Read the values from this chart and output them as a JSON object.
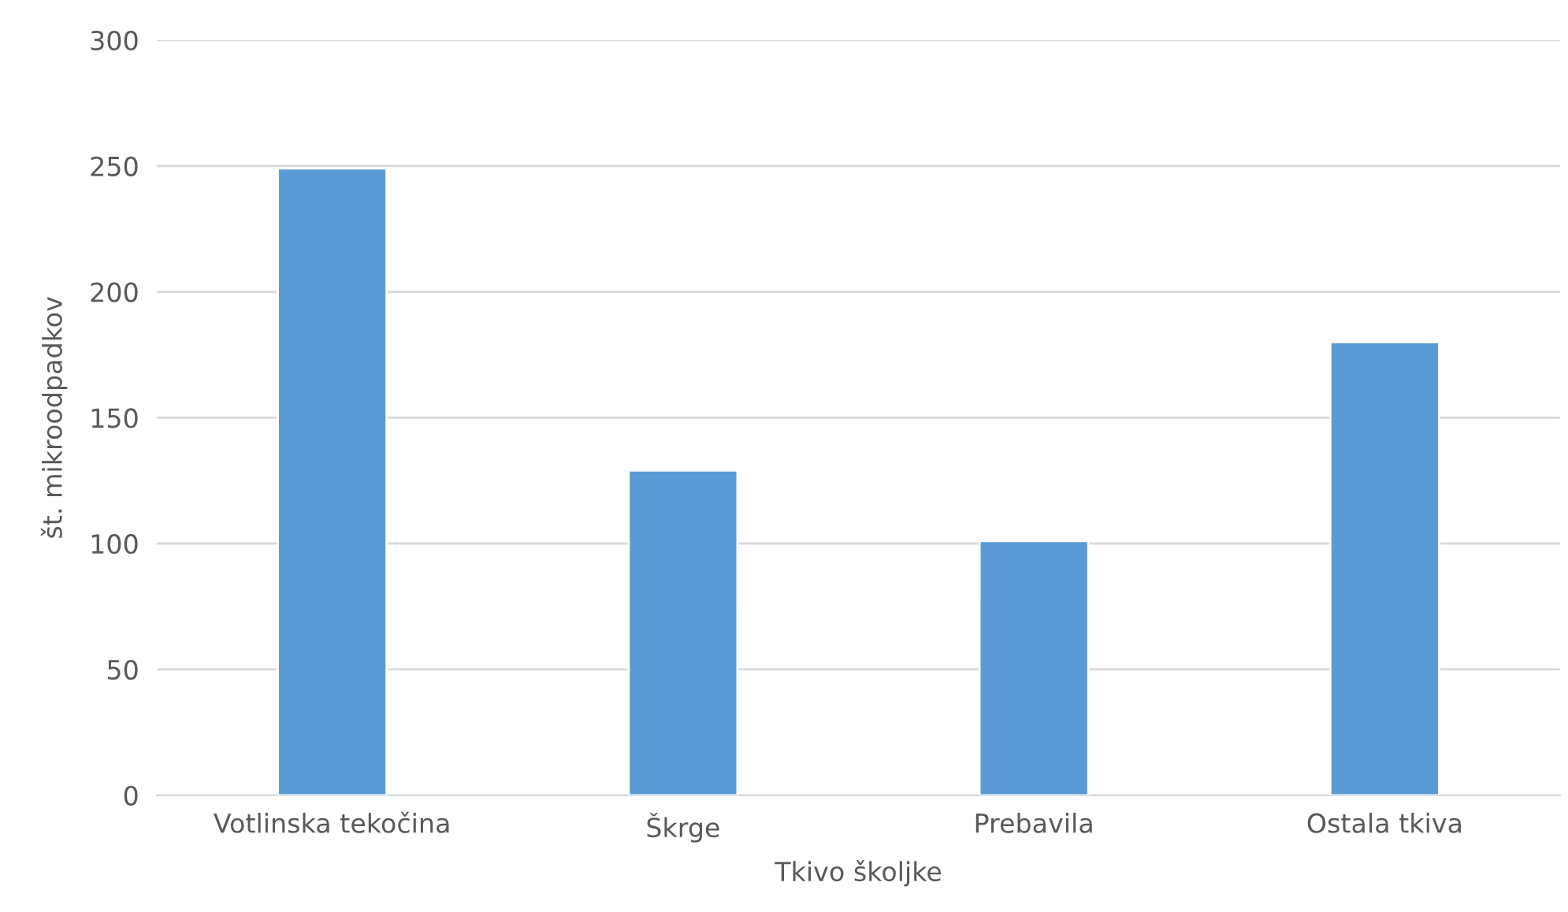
{
  "chart_data": {
    "type": "bar",
    "xlabel": "Tkivo školjke",
    "ylabel": "št. mikroodpadkov",
    "categories": [
      "Votlinska tekočina",
      "Škrge",
      "Prebavila",
      "Ostala tkiva"
    ],
    "values": [
      249,
      129,
      101,
      180
    ],
    "color": "#5b9bd5",
    "ylim": [
      0,
      300
    ],
    "yticks": [
      0,
      50,
      100,
      150,
      200,
      250,
      300
    ],
    "grid": "y",
    "legend": false
  }
}
